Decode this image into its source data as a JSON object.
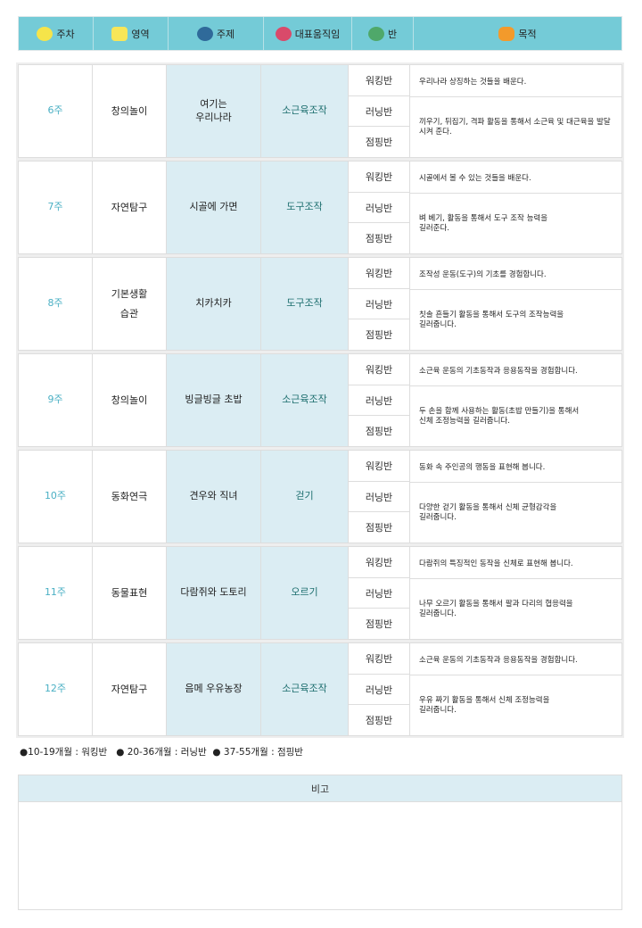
{
  "header": {
    "week": "주차",
    "area": "영역",
    "topic": "주제",
    "movement": "대표움직임",
    "class": "반",
    "purpose": "목적"
  },
  "colors": {
    "header_bg": "#74cbd7",
    "highlight_bg": "#dbedf3",
    "week_text": "#4bb0c4",
    "movement_text": "#1e6f6f"
  },
  "header_icons": [
    "bear-mascot-icon",
    "yellow-mascot-icon",
    "blue-mascot-icon",
    "red-mascot-icon",
    "frog-mascot-icon",
    "orange-mascot-icon"
  ],
  "classes": [
    "워킹반",
    "러닝반",
    "점핑반"
  ],
  "weeks": [
    {
      "week": "6주",
      "area": "창의놀이",
      "topic": "여기는\n우리나라",
      "movement": "소근육조작",
      "purpose1": "우리나라 상징하는 것들을 배운다.",
      "purpose2": "끼우기, 뒤집기, 격파 활동을 통해서 소근육 및 대근육을 발달시켜 준다."
    },
    {
      "week": "7주",
      "area": "자연탐구",
      "topic": "시골에 가면",
      "movement": "도구조작",
      "purpose1": "시골에서 볼 수 있는 것들을 배운다.",
      "purpose2": "벼 베기, 활동을 통해서 도구 조작 능력을\n길러준다."
    },
    {
      "week": "8주",
      "area": "기본생활\n습관",
      "topic": "치카치카",
      "movement": "도구조작",
      "purpose1": "조작성 운동(도구)의 기초를 경험합니다.",
      "purpose2": "칫솔 흔들기 활동을 통해서 도구의 조작능력을\n길러줍니다."
    },
    {
      "week": "9주",
      "area": "창의놀이",
      "topic": "빙글빙글 초밥",
      "movement": "소근육조작",
      "purpose1": "소근육 운동의 기초동작과 응용동작을 경험합니다.",
      "purpose2": "두 손을 함께 사용하는 활동(초밥 만들기)을 통해서\n신체 조정능력을 길러줍니다."
    },
    {
      "week": "10주",
      "area": "동화연극",
      "topic": "견우와 직녀",
      "movement": "걷기",
      "purpose1": "동화 속 주인공의 행동을 표현해 봅니다.",
      "purpose2": "다양한 걷기 활동을 통해서 신체 균형감각을\n길러줍니다."
    },
    {
      "week": "11주",
      "area": "동물표현",
      "topic": "다람쥐와 도토리",
      "movement": "오르기",
      "purpose1": "다람쥐의 특징적인 동작을 신체로 표현해 봅니다.",
      "purpose2": "나무 오르기 활동을 통해서 팔과 다리의 협응력을\n길러줍니다."
    },
    {
      "week": "12주",
      "area": "자연탐구",
      "topic": "음메 우유농장",
      "movement": "소근육조작",
      "purpose1": "소근육 운동의 기초동작과 응용동작을 경험합니다.",
      "purpose2": "우유 짜기 활동을 통해서 신체 조정능력을\n길러줍니다."
    }
  ],
  "legend": "●10-19개월 : 워킹반   ● 20-36개월 : 러닝반  ● 37-55개월 : 점핑반",
  "remarks": {
    "title": "비고",
    "content": ""
  }
}
